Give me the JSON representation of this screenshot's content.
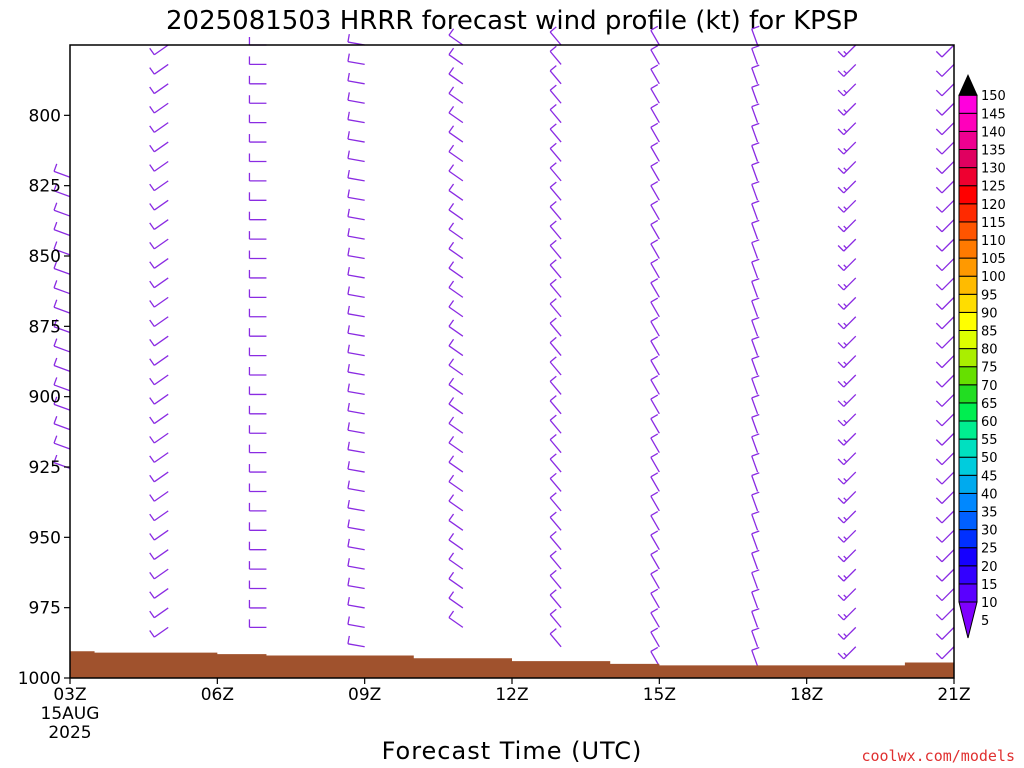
{
  "chart_data": {
    "type": "wind_profile",
    "title": "2025081503 HRRR forecast wind profile (kt) for KPSP",
    "xlabel": "Forecast Time (UTC)",
    "ylabel": "",
    "x_ticks": [
      "03Z",
      "06Z",
      "09Z",
      "12Z",
      "15Z",
      "18Z",
      "21Z"
    ],
    "x_tick_hours": [
      3,
      6,
      9,
      12,
      15,
      18,
      21
    ],
    "x_start_date": [
      "15AUG",
      "2025"
    ],
    "xlim_hours": [
      3,
      21
    ],
    "y_ticks": [
      800,
      825,
      850,
      875,
      900,
      925,
      950,
      975,
      1000
    ],
    "ylim_hpa": [
      1000,
      775
    ],
    "colorbar": {
      "levels": [
        5,
        10,
        15,
        20,
        25,
        30,
        35,
        40,
        45,
        50,
        55,
        60,
        65,
        70,
        75,
        80,
        85,
        90,
        95,
        100,
        105,
        110,
        115,
        120,
        125,
        130,
        135,
        140,
        145,
        150
      ],
      "colors": [
        "#7f00ff",
        "#5a00ff",
        "#3300ff",
        "#1500ff",
        "#0030ff",
        "#0060ff",
        "#0088ff",
        "#00aaee",
        "#00ccdd",
        "#00e0c0",
        "#00ee90",
        "#00ee50",
        "#22dd22",
        "#66e000",
        "#aaee00",
        "#ddff00",
        "#ffff00",
        "#ffdd00",
        "#ffbb00",
        "#ff9900",
        "#ff7a00",
        "#ff5500",
        "#ff2a00",
        "#ff0000",
        "#ee0030",
        "#e00060",
        "#ee0090",
        "#ff00bb",
        "#ff00dd",
        "#000000"
      ]
    },
    "terrain_color": "#a0522d",
    "terrain_surface_hpa": [
      {
        "hour": 3.0,
        "p": 990.5
      },
      {
        "hour": 3.5,
        "p": 991
      },
      {
        "hour": 6.0,
        "p": 991.5
      },
      {
        "hour": 7.0,
        "p": 992
      },
      {
        "hour": 10.0,
        "p": 993
      },
      {
        "hour": 12.0,
        "p": 994
      },
      {
        "hour": 14.0,
        "p": 995
      },
      {
        "hour": 15.0,
        "p": 995.5
      },
      {
        "hour": 19.0,
        "p": 995.5
      },
      {
        "hour": 20.0,
        "p": 994.5
      },
      {
        "hour": 21.0,
        "p": 994
      }
    ],
    "barb_color": "#8a2be2",
    "series": [
      {
        "hour": 3,
        "p_top": 822,
        "p_bot": 928,
        "dir": 290,
        "spd": 10
      },
      {
        "hour": 5,
        "p_top": 775,
        "p_bot": 985,
        "dir": 235,
        "spd": 10
      },
      {
        "hour": 7,
        "p_top": 775,
        "p_bot": 984,
        "dir": 270,
        "spd": 10
      },
      {
        "hour": 9,
        "p_top": 775,
        "p_bot": 993,
        "dir": 280,
        "spd": 10
      },
      {
        "hour": 11,
        "p_top": 775,
        "p_bot": 985,
        "dir": 305,
        "spd": 10
      },
      {
        "hour": 13,
        "p_top": 775,
        "p_bot": 995,
        "dir": 320,
        "spd": 10
      },
      {
        "hour": 15,
        "p_top": 775,
        "p_bot": 998,
        "dir": 330,
        "spd": 10
      },
      {
        "hour": 17,
        "p_top": 775,
        "p_bot": 996,
        "dir": 340,
        "spd": 10
      },
      {
        "hour": 19,
        "p_top": 775,
        "p_bot": 993,
        "dir": 225,
        "spd": 15
      },
      {
        "hour": 21,
        "p_top": 775,
        "p_bot": 994,
        "dir": 225,
        "spd": 10
      }
    ]
  },
  "credit": "coolwx.com/models"
}
